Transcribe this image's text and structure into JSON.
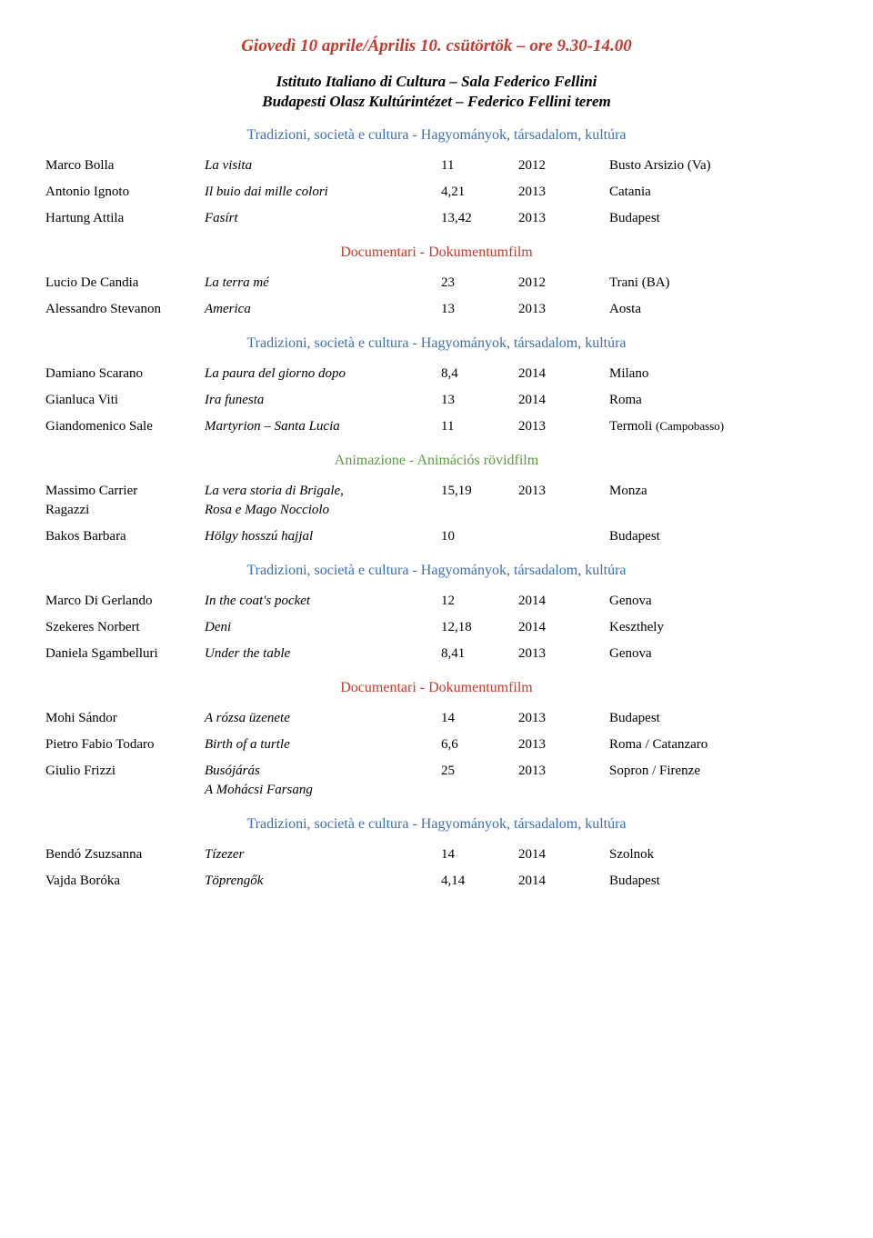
{
  "page_title": "Giovedì 10 aprile/Április 10. csütörtök – ore 9.30-14.00",
  "venue_line1": "Istituto Italiano di Cultura – Sala Federico Fellini",
  "venue_line2": "Budapesti Olasz Kultúrintézet – Federico Fellini terem",
  "headings": {
    "tradizioni": "Tradizioni, società e cultura - Hagyományok, társadalom, kultúra",
    "documentari": "Documentari - Dokumentumfilm",
    "animazione": "Animazione - Animációs rövidfilm"
  },
  "block1": [
    {
      "name": "Marco Bolla",
      "title": "La visita",
      "dur": "11",
      "year": "2012",
      "loc": "Busto Arsizio (Va)"
    },
    {
      "name": "Antonio Ignoto",
      "title": "Il buio dai mille colori",
      "dur": "4,21",
      "year": "2013",
      "loc": "Catania"
    },
    {
      "name": "Hartung Attila",
      "title": "Fasírt",
      "dur": "13,42",
      "year": "2013",
      "loc": "Budapest"
    }
  ],
  "block2": [
    {
      "name": "Lucio De Candia",
      "title": "La terra mé",
      "dur": "23",
      "year": "2012",
      "loc": "Trani (BA)"
    },
    {
      "name": "Alessandro Stevanon",
      "title": "America",
      "dur": "13",
      "year": "2013",
      "loc": "Aosta"
    }
  ],
  "block3": [
    {
      "name": "Damiano Scarano",
      "title": "La paura del giorno dopo",
      "dur": "8,4",
      "year": "2014",
      "loc": "Milano"
    },
    {
      "name": "Gianluca Viti",
      "title": "Ira funesta",
      "dur": "13",
      "year": "2014",
      "loc": "Roma"
    },
    {
      "name": "Giandomenico Sale",
      "title": "Martyrion – Santa Lucia",
      "dur": "11",
      "year": "2013",
      "loc": "Termoli ",
      "loc_small": "(Campobasso)"
    }
  ],
  "block4": [
    {
      "name": "Massimo Carrier",
      "name2": "Ragazzi",
      "title": "La vera storia di Brigale,",
      "title2": "Rosa e Mago Nocciolo",
      "dur": "15,19",
      "year": "2013",
      "loc": "Monza"
    },
    {
      "name": "Bakos Barbara",
      "title": "Hölgy hosszú hajjal",
      "dur": "10",
      "year": "",
      "loc": "Budapest"
    }
  ],
  "block5": [
    {
      "name": "Marco Di Gerlando",
      "title": "In the coat's pocket",
      "dur": "12",
      "year": "2014",
      "loc": "Genova"
    },
    {
      "name": "Szekeres Norbert",
      "title": "Deni",
      "dur": "12,18",
      "year": "2014",
      "loc": "Keszthely"
    },
    {
      "name": "Daniela Sgambelluri",
      "title": "Under the table",
      "dur": "8,41",
      "year": "2013",
      "loc": "Genova"
    }
  ],
  "block6": [
    {
      "name": "Mohi Sándor",
      "title": "A rózsa üzenete",
      "dur": "14",
      "year": "2013",
      "loc": "Budapest"
    },
    {
      "name": "Pietro Fabio Todaro",
      "title": "Birth of a turtle",
      "dur": "6,6",
      "year": "2013",
      "loc": "Roma / Catanzaro"
    },
    {
      "name": "Giulio Frizzi",
      "title": "Busójárás",
      "title2": "A Mohácsi Farsang",
      "dur": "25",
      "year": "2013",
      "loc": "Sopron / Firenze"
    }
  ],
  "block7": [
    {
      "name": "Bendó Zsuzsanna",
      "title": "Tízezer",
      "dur": "14",
      "year": "2014",
      "loc": "Szolnok"
    },
    {
      "name": "Vajda Boróka",
      "title": "Töprengők",
      "dur": "4,14",
      "year": "2014",
      "loc": "Budapest"
    }
  ],
  "colors": {
    "red": "#c33a2f",
    "blue": "#3a6fb0",
    "green": "#5a9b3e",
    "text": "#000000",
    "bg": "#ffffff"
  }
}
